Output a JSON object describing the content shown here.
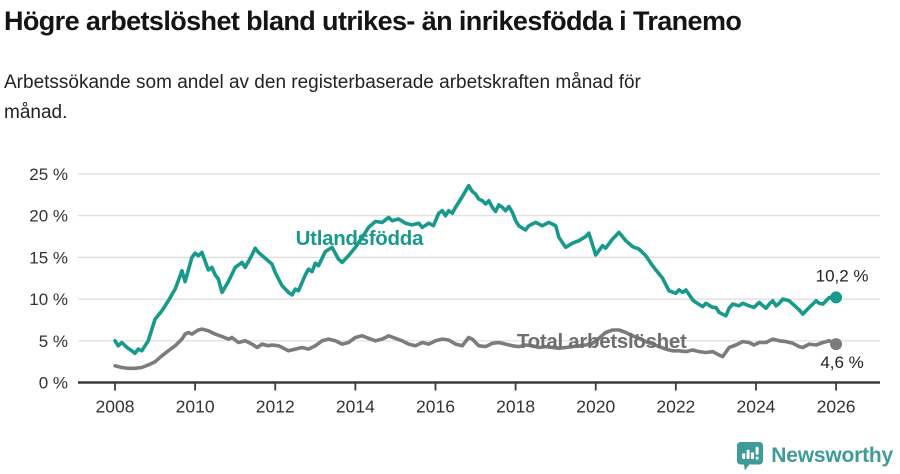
{
  "footer": {
    "brand_name": "Newsworthy",
    "brand_color": "#3E9B9A",
    "logo_icon": "bar-chart-speech-bubble-icon"
  },
  "chart_data": {
    "type": "line",
    "title": "Högre arbetslöshet bland utrikes- än inrikesfödda i Tranemo",
    "subtitle": "Arbetssökande som andel av den registerbaserade arbetskraften månad för månad.",
    "unit": "%",
    "grid": true,
    "x_axis": {
      "range": [
        2007.85,
        2027.1
      ],
      "ticks": [
        2008,
        2010,
        2012,
        2014,
        2016,
        2018,
        2020,
        2022,
        2024,
        2026
      ],
      "tick_labels": [
        "2008",
        "2010",
        "2012",
        "2014",
        "2016",
        "2018",
        "2020",
        "2022",
        "2024",
        "2026"
      ]
    },
    "y_axis": {
      "range": [
        0,
        26.5
      ],
      "ticks": [
        0,
        5,
        10,
        15,
        20,
        25
      ],
      "tick_labels": [
        "0 %",
        "5 %",
        "10 %",
        "15 %",
        "20 %",
        "25 %"
      ]
    },
    "styles": {
      "grid_color": "#DBDBDB",
      "axis_color": "#3A3A3A",
      "tick_label_color": "#333333",
      "end_label_color": "#222222"
    },
    "series": [
      {
        "name": "Total arbetslöshet",
        "color": "#7C7C7C",
        "label_color": "#6F6F6F",
        "label_anchor": [
          2020.15,
          4.95
        ],
        "end_label": "4,6 %",
        "end_value": 4.6,
        "end_label_offset": [
          6,
          24
        ],
        "points": [
          [
            2008.0,
            2.0
          ],
          [
            2008.17,
            1.8
          ],
          [
            2008.33,
            1.7
          ],
          [
            2008.5,
            1.7
          ],
          [
            2008.67,
            1.8
          ],
          [
            2008.83,
            2.1
          ],
          [
            2009.0,
            2.5
          ],
          [
            2009.17,
            3.2
          ],
          [
            2009.33,
            3.8
          ],
          [
            2009.5,
            4.4
          ],
          [
            2009.67,
            5.2
          ],
          [
            2009.75,
            5.8
          ],
          [
            2009.83,
            6.0
          ],
          [
            2009.92,
            5.8
          ],
          [
            2010.08,
            6.3
          ],
          [
            2010.17,
            6.4
          ],
          [
            2010.33,
            6.2
          ],
          [
            2010.5,
            5.8
          ],
          [
            2010.67,
            5.5
          ],
          [
            2010.83,
            5.2
          ],
          [
            2010.92,
            5.4
          ],
          [
            2011.08,
            4.8
          ],
          [
            2011.25,
            5.0
          ],
          [
            2011.42,
            4.6
          ],
          [
            2011.55,
            4.2
          ],
          [
            2011.67,
            4.6
          ],
          [
            2011.83,
            4.4
          ],
          [
            2011.92,
            4.5
          ],
          [
            2012.08,
            4.4
          ],
          [
            2012.17,
            4.2
          ],
          [
            2012.33,
            3.8
          ],
          [
            2012.5,
            4.0
          ],
          [
            2012.67,
            4.2
          ],
          [
            2012.83,
            4.0
          ],
          [
            2013.0,
            4.4
          ],
          [
            2013.17,
            5.0
          ],
          [
            2013.33,
            5.2
          ],
          [
            2013.5,
            5.0
          ],
          [
            2013.67,
            4.6
          ],
          [
            2013.83,
            4.8
          ],
          [
            2014.0,
            5.4
          ],
          [
            2014.17,
            5.6
          ],
          [
            2014.33,
            5.3
          ],
          [
            2014.5,
            5.0
          ],
          [
            2014.67,
            5.2
          ],
          [
            2014.83,
            5.6
          ],
          [
            2015.0,
            5.3
          ],
          [
            2015.17,
            5.0
          ],
          [
            2015.33,
            4.6
          ],
          [
            2015.5,
            4.4
          ],
          [
            2015.67,
            4.8
          ],
          [
            2015.83,
            4.6
          ],
          [
            2016.0,
            5.0
          ],
          [
            2016.17,
            5.2
          ],
          [
            2016.33,
            5.1
          ],
          [
            2016.5,
            4.6
          ],
          [
            2016.67,
            4.4
          ],
          [
            2016.83,
            5.4
          ],
          [
            2016.92,
            5.2
          ],
          [
            2017.08,
            4.4
          ],
          [
            2017.25,
            4.3
          ],
          [
            2017.42,
            4.7
          ],
          [
            2017.58,
            4.8
          ],
          [
            2017.75,
            4.6
          ],
          [
            2017.92,
            4.4
          ],
          [
            2018.08,
            4.3
          ],
          [
            2018.25,
            4.5
          ],
          [
            2018.42,
            4.4
          ],
          [
            2018.58,
            4.2
          ],
          [
            2018.75,
            4.3
          ],
          [
            2018.92,
            4.2
          ],
          [
            2019.08,
            4.1
          ],
          [
            2019.25,
            4.2
          ],
          [
            2019.42,
            4.3
          ],
          [
            2019.58,
            4.4
          ],
          [
            2019.75,
            4.5
          ],
          [
            2019.92,
            4.7
          ],
          [
            2020.08,
            5.3
          ],
          [
            2020.25,
            6.0
          ],
          [
            2020.42,
            6.3
          ],
          [
            2020.58,
            6.3
          ],
          [
            2020.75,
            6.0
          ],
          [
            2020.92,
            5.6
          ],
          [
            2021.08,
            5.3
          ],
          [
            2021.25,
            4.9
          ],
          [
            2021.42,
            4.6
          ],
          [
            2021.58,
            4.3
          ],
          [
            2021.75,
            4.0
          ],
          [
            2021.92,
            3.8
          ],
          [
            2022.08,
            3.8
          ],
          [
            2022.25,
            3.7
          ],
          [
            2022.42,
            3.9
          ],
          [
            2022.58,
            3.7
          ],
          [
            2022.75,
            3.6
          ],
          [
            2022.92,
            3.7
          ],
          [
            2023.0,
            3.5
          ],
          [
            2023.08,
            3.3
          ],
          [
            2023.17,
            3.1
          ],
          [
            2023.33,
            4.2
          ],
          [
            2023.5,
            4.5
          ],
          [
            2023.67,
            4.9
          ],
          [
            2023.83,
            4.8
          ],
          [
            2023.95,
            4.5
          ],
          [
            2024.08,
            4.8
          ],
          [
            2024.25,
            4.8
          ],
          [
            2024.42,
            5.2
          ],
          [
            2024.58,
            5.0
          ],
          [
            2024.75,
            4.9
          ],
          [
            2024.92,
            4.7
          ],
          [
            2025.08,
            4.3
          ],
          [
            2025.17,
            4.2
          ],
          [
            2025.33,
            4.6
          ],
          [
            2025.5,
            4.5
          ],
          [
            2025.67,
            4.8
          ],
          [
            2025.83,
            5.0
          ],
          [
            2026.0,
            4.6
          ]
        ]
      },
      {
        "name": "Utlandsfödda",
        "color": "#17998B",
        "label_color": "#17998B",
        "label_anchor": [
          2014.1,
          17.3
        ],
        "end_label": "10,2 %",
        "end_value": 10.2,
        "end_label_offset": [
          6,
          -16
        ],
        "points": [
          [
            2008.0,
            5.0
          ],
          [
            2008.08,
            4.4
          ],
          [
            2008.17,
            4.8
          ],
          [
            2008.3,
            4.2
          ],
          [
            2008.42,
            3.8
          ],
          [
            2008.5,
            3.5
          ],
          [
            2008.58,
            4.0
          ],
          [
            2008.67,
            3.8
          ],
          [
            2008.83,
            5.0
          ],
          [
            2009.0,
            7.6
          ],
          [
            2009.17,
            8.6
          ],
          [
            2009.33,
            9.8
          ],
          [
            2009.5,
            11.2
          ],
          [
            2009.58,
            12.2
          ],
          [
            2009.67,
            13.4
          ],
          [
            2009.75,
            12.1
          ],
          [
            2009.92,
            15.0
          ],
          [
            2010.0,
            15.5
          ],
          [
            2010.08,
            15.2
          ],
          [
            2010.17,
            15.6
          ],
          [
            2010.33,
            13.5
          ],
          [
            2010.42,
            13.8
          ],
          [
            2010.5,
            12.9
          ],
          [
            2010.58,
            12.4
          ],
          [
            2010.67,
            10.8
          ],
          [
            2010.83,
            12.1
          ],
          [
            2011.0,
            13.8
          ],
          [
            2011.17,
            14.4
          ],
          [
            2011.25,
            13.8
          ],
          [
            2011.42,
            15.3
          ],
          [
            2011.5,
            16.1
          ],
          [
            2011.58,
            15.6
          ],
          [
            2011.75,
            14.9
          ],
          [
            2011.92,
            14.2
          ],
          [
            2012.0,
            13.2
          ],
          [
            2012.17,
            11.6
          ],
          [
            2012.33,
            10.8
          ],
          [
            2012.42,
            10.5
          ],
          [
            2012.5,
            11.2
          ],
          [
            2012.58,
            11.0
          ],
          [
            2012.75,
            12.9
          ],
          [
            2012.83,
            13.6
          ],
          [
            2012.92,
            13.3
          ],
          [
            2013.0,
            14.3
          ],
          [
            2013.08,
            14.0
          ],
          [
            2013.25,
            15.7
          ],
          [
            2013.42,
            16.2
          ],
          [
            2013.58,
            14.8
          ],
          [
            2013.67,
            14.4
          ],
          [
            2013.83,
            15.2
          ],
          [
            2014.0,
            16.2
          ],
          [
            2014.17,
            17.4
          ],
          [
            2014.33,
            18.6
          ],
          [
            2014.5,
            19.3
          ],
          [
            2014.67,
            19.2
          ],
          [
            2014.83,
            19.8
          ],
          [
            2014.92,
            19.4
          ],
          [
            2015.08,
            19.6
          ],
          [
            2015.25,
            19.1
          ],
          [
            2015.42,
            18.9
          ],
          [
            2015.58,
            19.1
          ],
          [
            2015.67,
            18.6
          ],
          [
            2015.83,
            19.1
          ],
          [
            2015.95,
            18.8
          ],
          [
            2016.08,
            20.3
          ],
          [
            2016.17,
            20.6
          ],
          [
            2016.25,
            20.0
          ],
          [
            2016.33,
            20.6
          ],
          [
            2016.42,
            20.3
          ],
          [
            2016.5,
            21.0
          ],
          [
            2016.58,
            21.6
          ],
          [
            2016.67,
            22.3
          ],
          [
            2016.83,
            23.6
          ],
          [
            2016.92,
            22.9
          ],
          [
            2017.0,
            22.6
          ],
          [
            2017.08,
            22.0
          ],
          [
            2017.17,
            21.8
          ],
          [
            2017.25,
            21.4
          ],
          [
            2017.33,
            21.8
          ],
          [
            2017.42,
            21.0
          ],
          [
            2017.5,
            20.5
          ],
          [
            2017.58,
            21.3
          ],
          [
            2017.67,
            21.0
          ],
          [
            2017.75,
            20.6
          ],
          [
            2017.83,
            21.1
          ],
          [
            2017.92,
            20.4
          ],
          [
            2018.0,
            19.4
          ],
          [
            2018.08,
            18.8
          ],
          [
            2018.17,
            18.5
          ],
          [
            2018.25,
            18.3
          ],
          [
            2018.33,
            18.8
          ],
          [
            2018.5,
            19.2
          ],
          [
            2018.67,
            18.8
          ],
          [
            2018.83,
            19.2
          ],
          [
            2019.0,
            18.8
          ],
          [
            2019.08,
            17.4
          ],
          [
            2019.25,
            16.2
          ],
          [
            2019.42,
            16.7
          ],
          [
            2019.58,
            17.0
          ],
          [
            2019.75,
            17.5
          ],
          [
            2019.83,
            17.9
          ],
          [
            2020.0,
            15.3
          ],
          [
            2020.08,
            15.8
          ],
          [
            2020.17,
            16.4
          ],
          [
            2020.25,
            16.1
          ],
          [
            2020.42,
            17.2
          ],
          [
            2020.58,
            18.0
          ],
          [
            2020.75,
            17.0
          ],
          [
            2020.92,
            16.3
          ],
          [
            2021.08,
            16.0
          ],
          [
            2021.25,
            15.2
          ],
          [
            2021.42,
            14.0
          ],
          [
            2021.5,
            13.5
          ],
          [
            2021.67,
            12.5
          ],
          [
            2021.83,
            11.0
          ],
          [
            2022.0,
            10.7
          ],
          [
            2022.08,
            11.1
          ],
          [
            2022.17,
            10.8
          ],
          [
            2022.25,
            11.1
          ],
          [
            2022.42,
            9.9
          ],
          [
            2022.5,
            9.6
          ],
          [
            2022.67,
            9.1
          ],
          [
            2022.75,
            9.5
          ],
          [
            2022.92,
            9.0
          ],
          [
            2023.0,
            9.0
          ],
          [
            2023.08,
            8.4
          ],
          [
            2023.25,
            8.0
          ],
          [
            2023.33,
            8.9
          ],
          [
            2023.42,
            9.4
          ],
          [
            2023.58,
            9.2
          ],
          [
            2023.67,
            9.5
          ],
          [
            2023.83,
            9.2
          ],
          [
            2023.95,
            9.0
          ],
          [
            2024.08,
            9.6
          ],
          [
            2024.25,
            8.9
          ],
          [
            2024.33,
            9.4
          ],
          [
            2024.42,
            9.8
          ],
          [
            2024.5,
            9.2
          ],
          [
            2024.58,
            9.5
          ],
          [
            2024.67,
            10.0
          ],
          [
            2024.83,
            9.8
          ],
          [
            2024.92,
            9.4
          ],
          [
            2025.08,
            8.7
          ],
          [
            2025.17,
            8.2
          ],
          [
            2025.33,
            9.0
          ],
          [
            2025.42,
            9.4
          ],
          [
            2025.5,
            9.8
          ],
          [
            2025.58,
            9.5
          ],
          [
            2025.67,
            9.4
          ],
          [
            2025.83,
            10.2
          ],
          [
            2025.92,
            10.0
          ],
          [
            2026.0,
            10.2
          ]
        ]
      }
    ]
  }
}
